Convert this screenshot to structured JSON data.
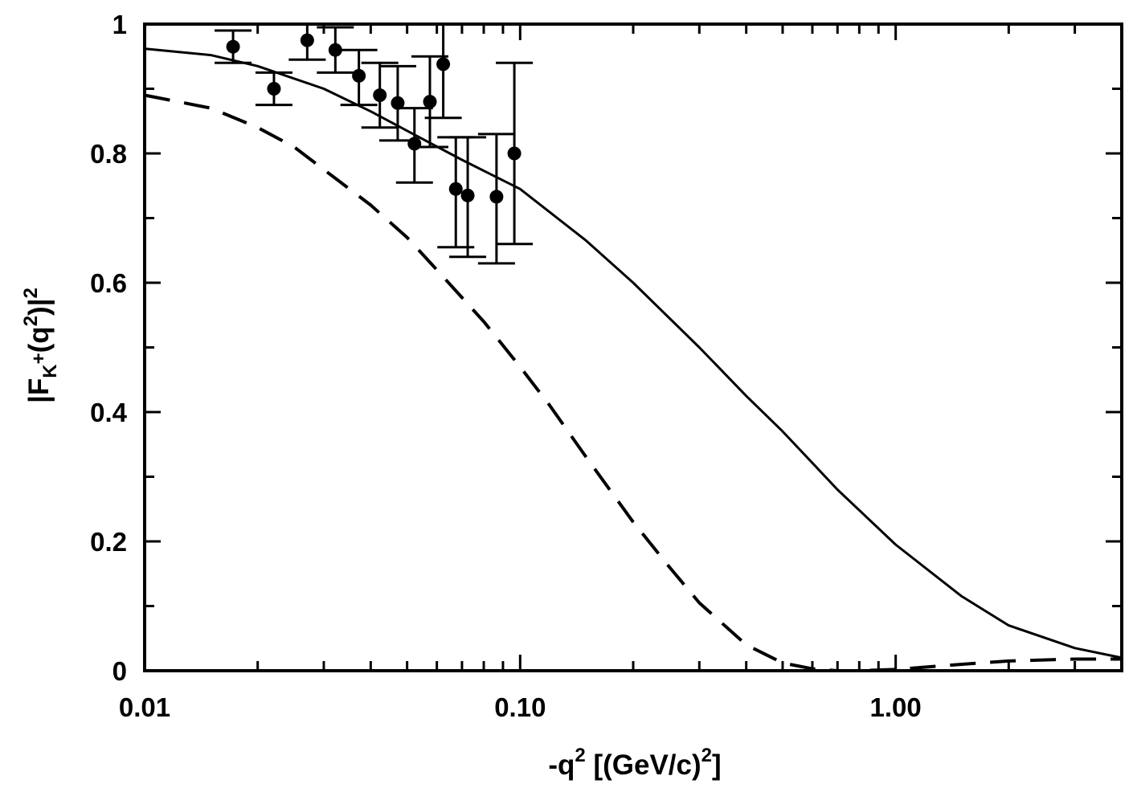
{
  "chart_data": {
    "type": "scatter",
    "title": "",
    "xlabel": {
      "prefix": "-q",
      "sup": "2",
      "middle": " [(GeV/c)",
      "sup2": "2",
      "suffix": "]"
    },
    "ylabel": {
      "part1": "|F",
      "sub": "K",
      "subsup": "+",
      "part2": "(q",
      "sup": "2",
      "part3": ")|",
      "sup2": "2"
    },
    "x_scale": "log",
    "xlim": [
      0.01,
      4.0
    ],
    "ylim": [
      0,
      1
    ],
    "x_ticks": [
      {
        "value": 0.01,
        "label": "0.01"
      },
      {
        "value": 0.1,
        "label": "0.10"
      },
      {
        "value": 1.0,
        "label": "1.00"
      }
    ],
    "y_ticks": [
      {
        "value": 0,
        "label": "0"
      },
      {
        "value": 0.2,
        "label": "0.2"
      },
      {
        "value": 0.4,
        "label": "0.4"
      },
      {
        "value": 0.6,
        "label": "0.6"
      },
      {
        "value": 0.8,
        "label": "0.8"
      },
      {
        "value": 1,
        "label": "1"
      }
    ],
    "grid": false,
    "series": [
      {
        "kind": "points_with_errorbars",
        "color": "#000000",
        "points": [
          {
            "x": 0.0172,
            "y": 0.965,
            "lo": 0.94,
            "hi": 0.99
          },
          {
            "x": 0.0221,
            "y": 0.9,
            "lo": 0.875,
            "hi": 0.925
          },
          {
            "x": 0.0271,
            "y": 0.975,
            "lo": 0.945,
            "hi": 1.0
          },
          {
            "x": 0.0322,
            "y": 0.96,
            "lo": 0.925,
            "hi": 0.995
          },
          {
            "x": 0.0372,
            "y": 0.92,
            "lo": 0.875,
            "hi": 0.96
          },
          {
            "x": 0.0423,
            "y": 0.89,
            "lo": 0.84,
            "hi": 0.94
          },
          {
            "x": 0.0472,
            "y": 0.878,
            "lo": 0.82,
            "hi": 0.935
          },
          {
            "x": 0.0523,
            "y": 0.815,
            "lo": 0.755,
            "hi": 0.87
          },
          {
            "x": 0.0575,
            "y": 0.88,
            "lo": 0.81,
            "hi": 0.95
          },
          {
            "x": 0.0624,
            "y": 0.938,
            "lo": 0.855,
            "hi": 1.0
          },
          {
            "x": 0.0674,
            "y": 0.745,
            "lo": 0.655,
            "hi": 0.825
          },
          {
            "x": 0.0725,
            "y": 0.735,
            "lo": 0.64,
            "hi": 0.825
          },
          {
            "x": 0.0865,
            "y": 0.733,
            "lo": 0.63,
            "hi": 0.83
          },
          {
            "x": 0.0965,
            "y": 0.8,
            "lo": 0.66,
            "hi": 0.94
          }
        ]
      },
      {
        "kind": "line",
        "style": "solid",
        "color": "#000000",
        "points": [
          [
            0.01,
            0.962
          ],
          [
            0.015,
            0.952
          ],
          [
            0.02,
            0.935
          ],
          [
            0.03,
            0.9
          ],
          [
            0.04,
            0.865
          ],
          [
            0.05,
            0.835
          ],
          [
            0.07,
            0.79
          ],
          [
            0.1,
            0.745
          ],
          [
            0.15,
            0.665
          ],
          [
            0.2,
            0.6
          ],
          [
            0.3,
            0.5
          ],
          [
            0.4,
            0.425
          ],
          [
            0.5,
            0.37
          ],
          [
            0.7,
            0.28
          ],
          [
            1.0,
            0.195
          ],
          [
            1.5,
            0.115
          ],
          [
            2.0,
            0.07
          ],
          [
            3.0,
            0.035
          ],
          [
            4.0,
            0.02
          ]
        ]
      },
      {
        "kind": "line",
        "style": "dashed",
        "color": "#000000",
        "points": [
          [
            0.01,
            0.89
          ],
          [
            0.015,
            0.87
          ],
          [
            0.02,
            0.84
          ],
          [
            0.025,
            0.81
          ],
          [
            0.03,
            0.775
          ],
          [
            0.04,
            0.72
          ],
          [
            0.05,
            0.67
          ],
          [
            0.06,
            0.62
          ],
          [
            0.08,
            0.54
          ],
          [
            0.1,
            0.47
          ],
          [
            0.12,
            0.41
          ],
          [
            0.15,
            0.33
          ],
          [
            0.2,
            0.23
          ],
          [
            0.25,
            0.16
          ],
          [
            0.3,
            0.105
          ],
          [
            0.4,
            0.04
          ],
          [
            0.5,
            0.012
          ],
          [
            0.6,
            0.003
          ],
          [
            0.7,
            0.0
          ],
          [
            0.8,
            0.0
          ],
          [
            1.0,
            0.002
          ],
          [
            1.5,
            0.01
          ],
          [
            2.0,
            0.015
          ],
          [
            3.0,
            0.018
          ],
          [
            4.0,
            0.018
          ]
        ]
      }
    ]
  }
}
